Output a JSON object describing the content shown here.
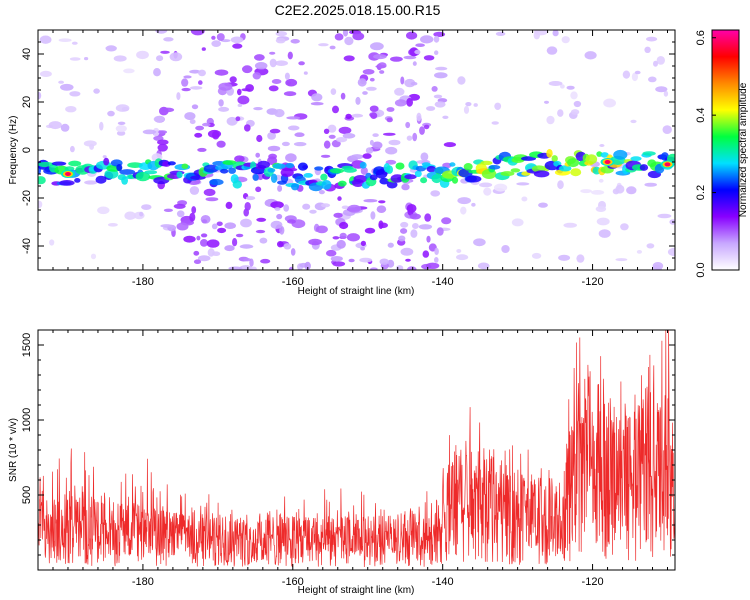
{
  "page": {
    "title": "C2E2.2025.018.15.00.R15"
  },
  "colors": {
    "snr_line": "#ee2a2a",
    "axes": "#000000",
    "background": "#ffffff"
  },
  "chart_data": [
    {
      "type": "heatmap",
      "xlabel": "Height of straight line (km)",
      "ylabel": "Frequency (Hz)",
      "xlim": [
        -194,
        -109
      ],
      "ylim": [
        -50,
        50
      ],
      "xticks": [
        "-180",
        "-160",
        "-140",
        "-120"
      ],
      "yticks": [
        "-40",
        "-20",
        "0",
        "20",
        "40"
      ],
      "colorbar": {
        "label": "Normalized spectral amplitude",
        "range": [
          0.0,
          0.62
        ],
        "ticks": [
          "0.0",
          "0.2",
          "0.4",
          "0.6"
        ],
        "colormap": [
          "#ffffff",
          "#c8a8ff",
          "#8800ff",
          "#0000ff",
          "#00e0ff",
          "#00ff40",
          "#ffff00",
          "#ff8800",
          "#ff0000",
          "#ff00aa"
        ]
      },
      "features": {
        "main_band": [
          {
            "x": -194,
            "freq": -10
          },
          {
            "x": -180,
            "freq": -8
          },
          {
            "x": -160,
            "freq": -11
          },
          {
            "x": -140,
            "freq": -10
          },
          {
            "x": -130,
            "freq": -6
          },
          {
            "x": -120,
            "freq": -5
          },
          {
            "x": -110,
            "freq": -6
          }
        ],
        "broadband_noise_region": [
          -178,
          -139
        ],
        "peak_locations": [
          {
            "x": -190,
            "freq": -10,
            "amplitude": 0.6
          },
          {
            "x": -118,
            "freq": -5,
            "amplitude": 0.6
          },
          {
            "x": -110,
            "freq": -6,
            "amplitude": 0.6
          }
        ]
      },
      "grid": false
    },
    {
      "type": "line",
      "xlabel": "Height of straight line (km)",
      "ylabel": "SNR (10 * v/v)",
      "xlim": [
        -194,
        -109
      ],
      "ylim": [
        0,
        1600
      ],
      "xticks": [
        "-180",
        "-160",
        "-140",
        "-120"
      ],
      "yticks": [
        "500",
        "1000",
        "1500"
      ],
      "series": [
        {
          "envelope": [
            {
              "x": -194,
              "y_mean": 250,
              "y_max": 550
            },
            {
              "x": -190,
              "y_mean": 270,
              "y_max": 850
            },
            {
              "x": -185,
              "y_mean": 250,
              "y_max": 650
            },
            {
              "x": -180,
              "y_mean": 230,
              "y_max": 820
            },
            {
              "x": -175,
              "y_mean": 210,
              "y_max": 500
            },
            {
              "x": -170,
              "y_mean": 200,
              "y_max": 450
            },
            {
              "x": -160,
              "y_mean": 190,
              "y_max": 450
            },
            {
              "x": -150,
              "y_mean": 190,
              "y_max": 480
            },
            {
              "x": -142,
              "y_mean": 200,
              "y_max": 450
            },
            {
              "x": -138,
              "y_mean": 420,
              "y_max": 950
            },
            {
              "x": -135,
              "y_mean": 450,
              "y_max": 880
            },
            {
              "x": -130,
              "y_mean": 350,
              "y_max": 800
            },
            {
              "x": -125,
              "y_mean": 300,
              "y_max": 700
            },
            {
              "x": -122,
              "y_mean": 700,
              "y_max": 1600
            },
            {
              "x": -118,
              "y_mean": 650,
              "y_max": 1350
            },
            {
              "x": -115,
              "y_mean": 600,
              "y_max": 1300
            },
            {
              "x": -110,
              "y_mean": 650,
              "y_max": 1600
            },
            {
              "x": -109,
              "y_mean": 500,
              "y_max": 1100
            }
          ]
        }
      ],
      "grid": false
    }
  ]
}
